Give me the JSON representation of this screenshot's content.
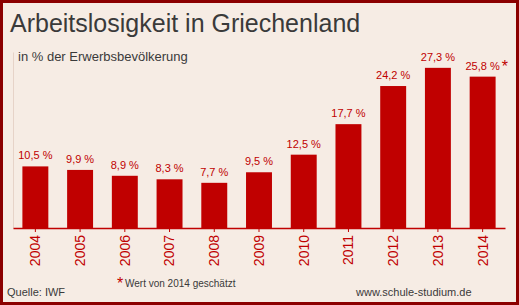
{
  "chart_data": {
    "type": "bar",
    "title": "Arbeitslosigkeit in Griechenland",
    "subtitle": "in % der Erwerbsbevölkerung",
    "categories": [
      "2004",
      "2005",
      "2006",
      "2007",
      "2008",
      "2009",
      "2010",
      "2011",
      "2012",
      "2013",
      "2014"
    ],
    "values": [
      10.5,
      9.9,
      8.9,
      8.3,
      7.7,
      9.5,
      12.5,
      17.7,
      24.2,
      27.3,
      25.8
    ],
    "value_labels": [
      "10,5 %",
      "9,9 %",
      "8,9 %",
      "8,3 %",
      "7,7 %",
      "9,5 %",
      "12,5 %",
      "17,7 %",
      "24,2 %",
      "27,3 %",
      "25,8 %"
    ],
    "color": "#c00000",
    "ylim": [
      0,
      30
    ],
    "data_labels": true,
    "tick_labels": "x",
    "grid": false,
    "annotations": {
      "asterisk": "*",
      "footnote": "Wert von 2014 geschätzt",
      "source": "Quelle: IWF",
      "website": "www.schule-studium.de"
    }
  }
}
